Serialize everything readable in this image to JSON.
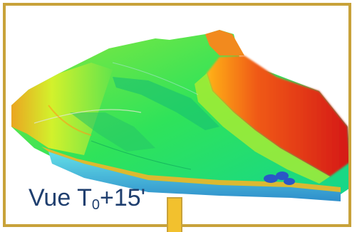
{
  "image": {
    "subject": "terrain-elevation-map",
    "colors": {
      "frame": "#c8a23a",
      "low": "#2a57c7",
      "midlow": "#1ccf9a",
      "mid": "#2fe35a",
      "midhigh": "#c9ee2a",
      "high": "#e11d16",
      "caption": "#1f3f6f",
      "arrow": "#f2c12e"
    }
  },
  "caption": {
    "prefix": "Vue T",
    "subscript": "0",
    "suffix": "+15'"
  }
}
